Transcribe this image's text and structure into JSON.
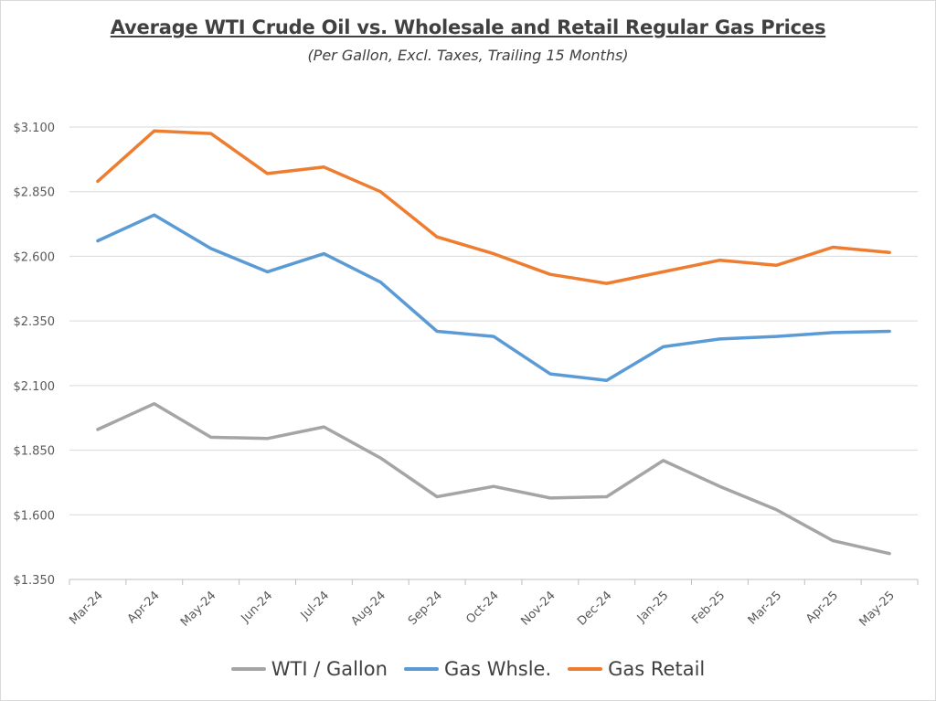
{
  "chart_data": {
    "type": "line",
    "title": "Average WTI Crude Oil vs. Wholesale and Retail Regular Gas Prices",
    "subtitle": "(Per Gallon, Excl. Taxes, Trailing 15 Months)",
    "categories": [
      "Mar-24",
      "Apr-24",
      "May-24",
      "Jun-24",
      "Jul-24",
      "Aug-24",
      "Sep-24",
      "Oct-24",
      "Nov-24",
      "Dec-24",
      "Jan-25",
      "Feb-25",
      "Mar-25",
      "Apr-25",
      "May-25"
    ],
    "y_ticks": [
      "$3.100",
      "$2.850",
      "$2.600",
      "$2.350",
      "$2.100",
      "$1.850",
      "$1.600",
      "$1.350"
    ],
    "ylim": [
      1.35,
      3.1
    ],
    "grid": true,
    "legend_position": "bottom",
    "series": [
      {
        "name": "WTI / Gallon",
        "color": "#a5a5a5",
        "values": [
          1.93,
          2.03,
          1.9,
          1.895,
          1.94,
          1.82,
          1.67,
          1.71,
          1.665,
          1.67,
          1.81,
          1.71,
          1.62,
          1.5,
          1.45
        ]
      },
      {
        "name": "Gas Whsle.",
        "color": "#5b9bd5",
        "values": [
          2.66,
          2.76,
          2.63,
          2.54,
          2.61,
          2.5,
          2.31,
          2.29,
          2.145,
          2.12,
          2.25,
          2.28,
          2.29,
          2.305,
          2.31
        ]
      },
      {
        "name": "Gas Retail",
        "color": "#ed7d31",
        "values": [
          2.89,
          3.085,
          3.075,
          2.92,
          2.945,
          2.85,
          2.675,
          2.61,
          2.53,
          2.495,
          2.54,
          2.585,
          2.565,
          2.635,
          2.615
        ]
      }
    ]
  }
}
